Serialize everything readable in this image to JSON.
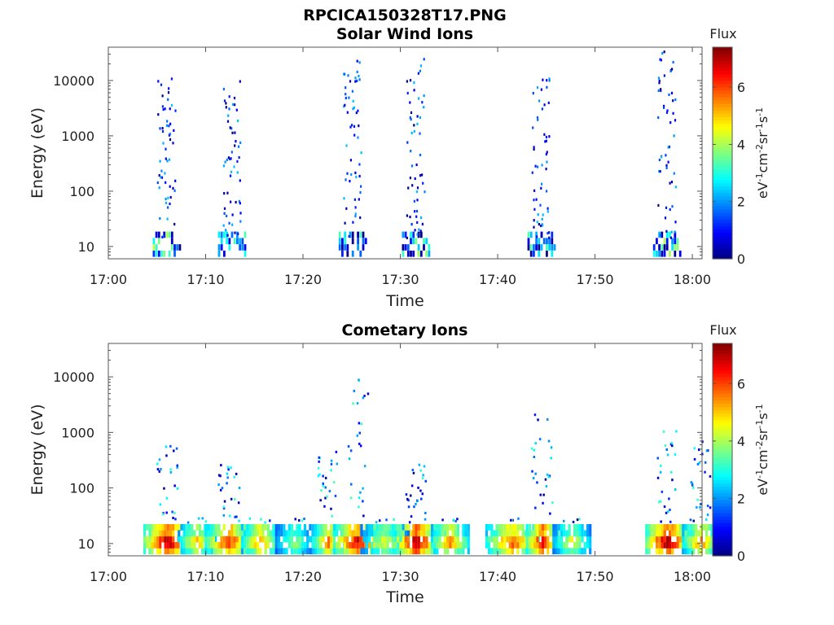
{
  "figure_title": "RPCICA150328T17.PNG",
  "chart_data": [
    {
      "type": "heatmap",
      "title": "Solar Wind Ions",
      "xlabel": "Time",
      "ylabel": "Energy (eV)",
      "x_ticks": [
        "17:00",
        "17:10",
        "17:20",
        "17:30",
        "17:40",
        "17:50",
        "18:00"
      ],
      "xlim": [
        "17:00",
        "18:01"
      ],
      "y_scale": "log",
      "y_ticks": [
        "10",
        "100",
        "1000",
        "10000"
      ],
      "ylim": [
        6,
        40000
      ],
      "colorbar": {
        "label": "Flux",
        "units": "eV-1cm-2sr-1s-1",
        "ticks": [
          "0",
          "2",
          "4",
          "6"
        ],
        "range": [
          0,
          7.4
        ]
      },
      "bursts": [
        {
          "time": "17:05.9",
          "low_flux": 3.5,
          "high_energy_extent": 12000
        },
        {
          "time": "17:12.6",
          "low_flux": 3.0,
          "high_energy_extent": 13000
        },
        {
          "time": "17:25.0",
          "low_flux": 3.0,
          "high_energy_extent": 24000
        },
        {
          "time": "17:31.5",
          "low_flux": 3.5,
          "high_energy_extent": 32000
        },
        {
          "time": "17:44.4",
          "low_flux": 3.0,
          "high_energy_extent": 14000
        },
        {
          "time": "17:57.3",
          "low_flux": 3.5,
          "high_energy_extent": 38000
        }
      ]
    },
    {
      "type": "heatmap",
      "title": "Cometary Ions",
      "xlabel": "Time",
      "ylabel": "Energy (eV)",
      "x_ticks": [
        "17:00",
        "17:10",
        "17:20",
        "17:30",
        "17:40",
        "17:50",
        "18:00"
      ],
      "xlim": [
        "17:00",
        "18:01"
      ],
      "y_scale": "log",
      "y_ticks": [
        "10",
        "100",
        "1000",
        "10000"
      ],
      "ylim": [
        6,
        40000
      ],
      "colorbar": {
        "label": "Flux",
        "units": "eV-1cm-2sr-1s-1",
        "ticks": [
          "0",
          "2",
          "4",
          "6"
        ],
        "range": [
          0,
          7.4
        ]
      },
      "bursts": [
        {
          "time": "17:06.0",
          "peak_flux": 7.2,
          "high_energy_extent": 600
        },
        {
          "time": "17:09.0",
          "peak_flux": 5.0,
          "high_energy_extent": 30
        },
        {
          "time": "17:12.3",
          "peak_flux": 6.3,
          "high_energy_extent": 350
        },
        {
          "time": "17:15.5",
          "peak_flux": 5.5,
          "high_energy_extent": 30
        },
        {
          "time": "17:19.0",
          "peak_flux": 4.0,
          "high_energy_extent": 30
        },
        {
          "time": "17:22.5",
          "peak_flux": 5.5,
          "high_energy_extent": 500
        },
        {
          "time": "17:25.5",
          "peak_flux": 6.8,
          "high_energy_extent": 11000
        },
        {
          "time": "17:28.3",
          "peak_flux": 4.5,
          "high_energy_extent": 30
        },
        {
          "time": "17:31.5",
          "peak_flux": 7.3,
          "high_energy_extent": 300
        },
        {
          "time": "17:35.0",
          "peak_flux": 5.5,
          "high_energy_extent": 30
        },
        {
          "time": "17:41.4",
          "peak_flux": 6.0,
          "high_energy_extent": 30
        },
        {
          "time": "17:44.5",
          "peak_flux": 6.8,
          "high_energy_extent": 3800
        },
        {
          "time": "17:47.5",
          "peak_flux": 4.5,
          "high_energy_extent": 30
        },
        {
          "time": "17:57.3",
          "peak_flux": 7.3,
          "high_energy_extent": 1100
        },
        {
          "time": "18:00.8",
          "peak_flux": 5.5,
          "high_energy_extent": 800
        }
      ]
    }
  ]
}
